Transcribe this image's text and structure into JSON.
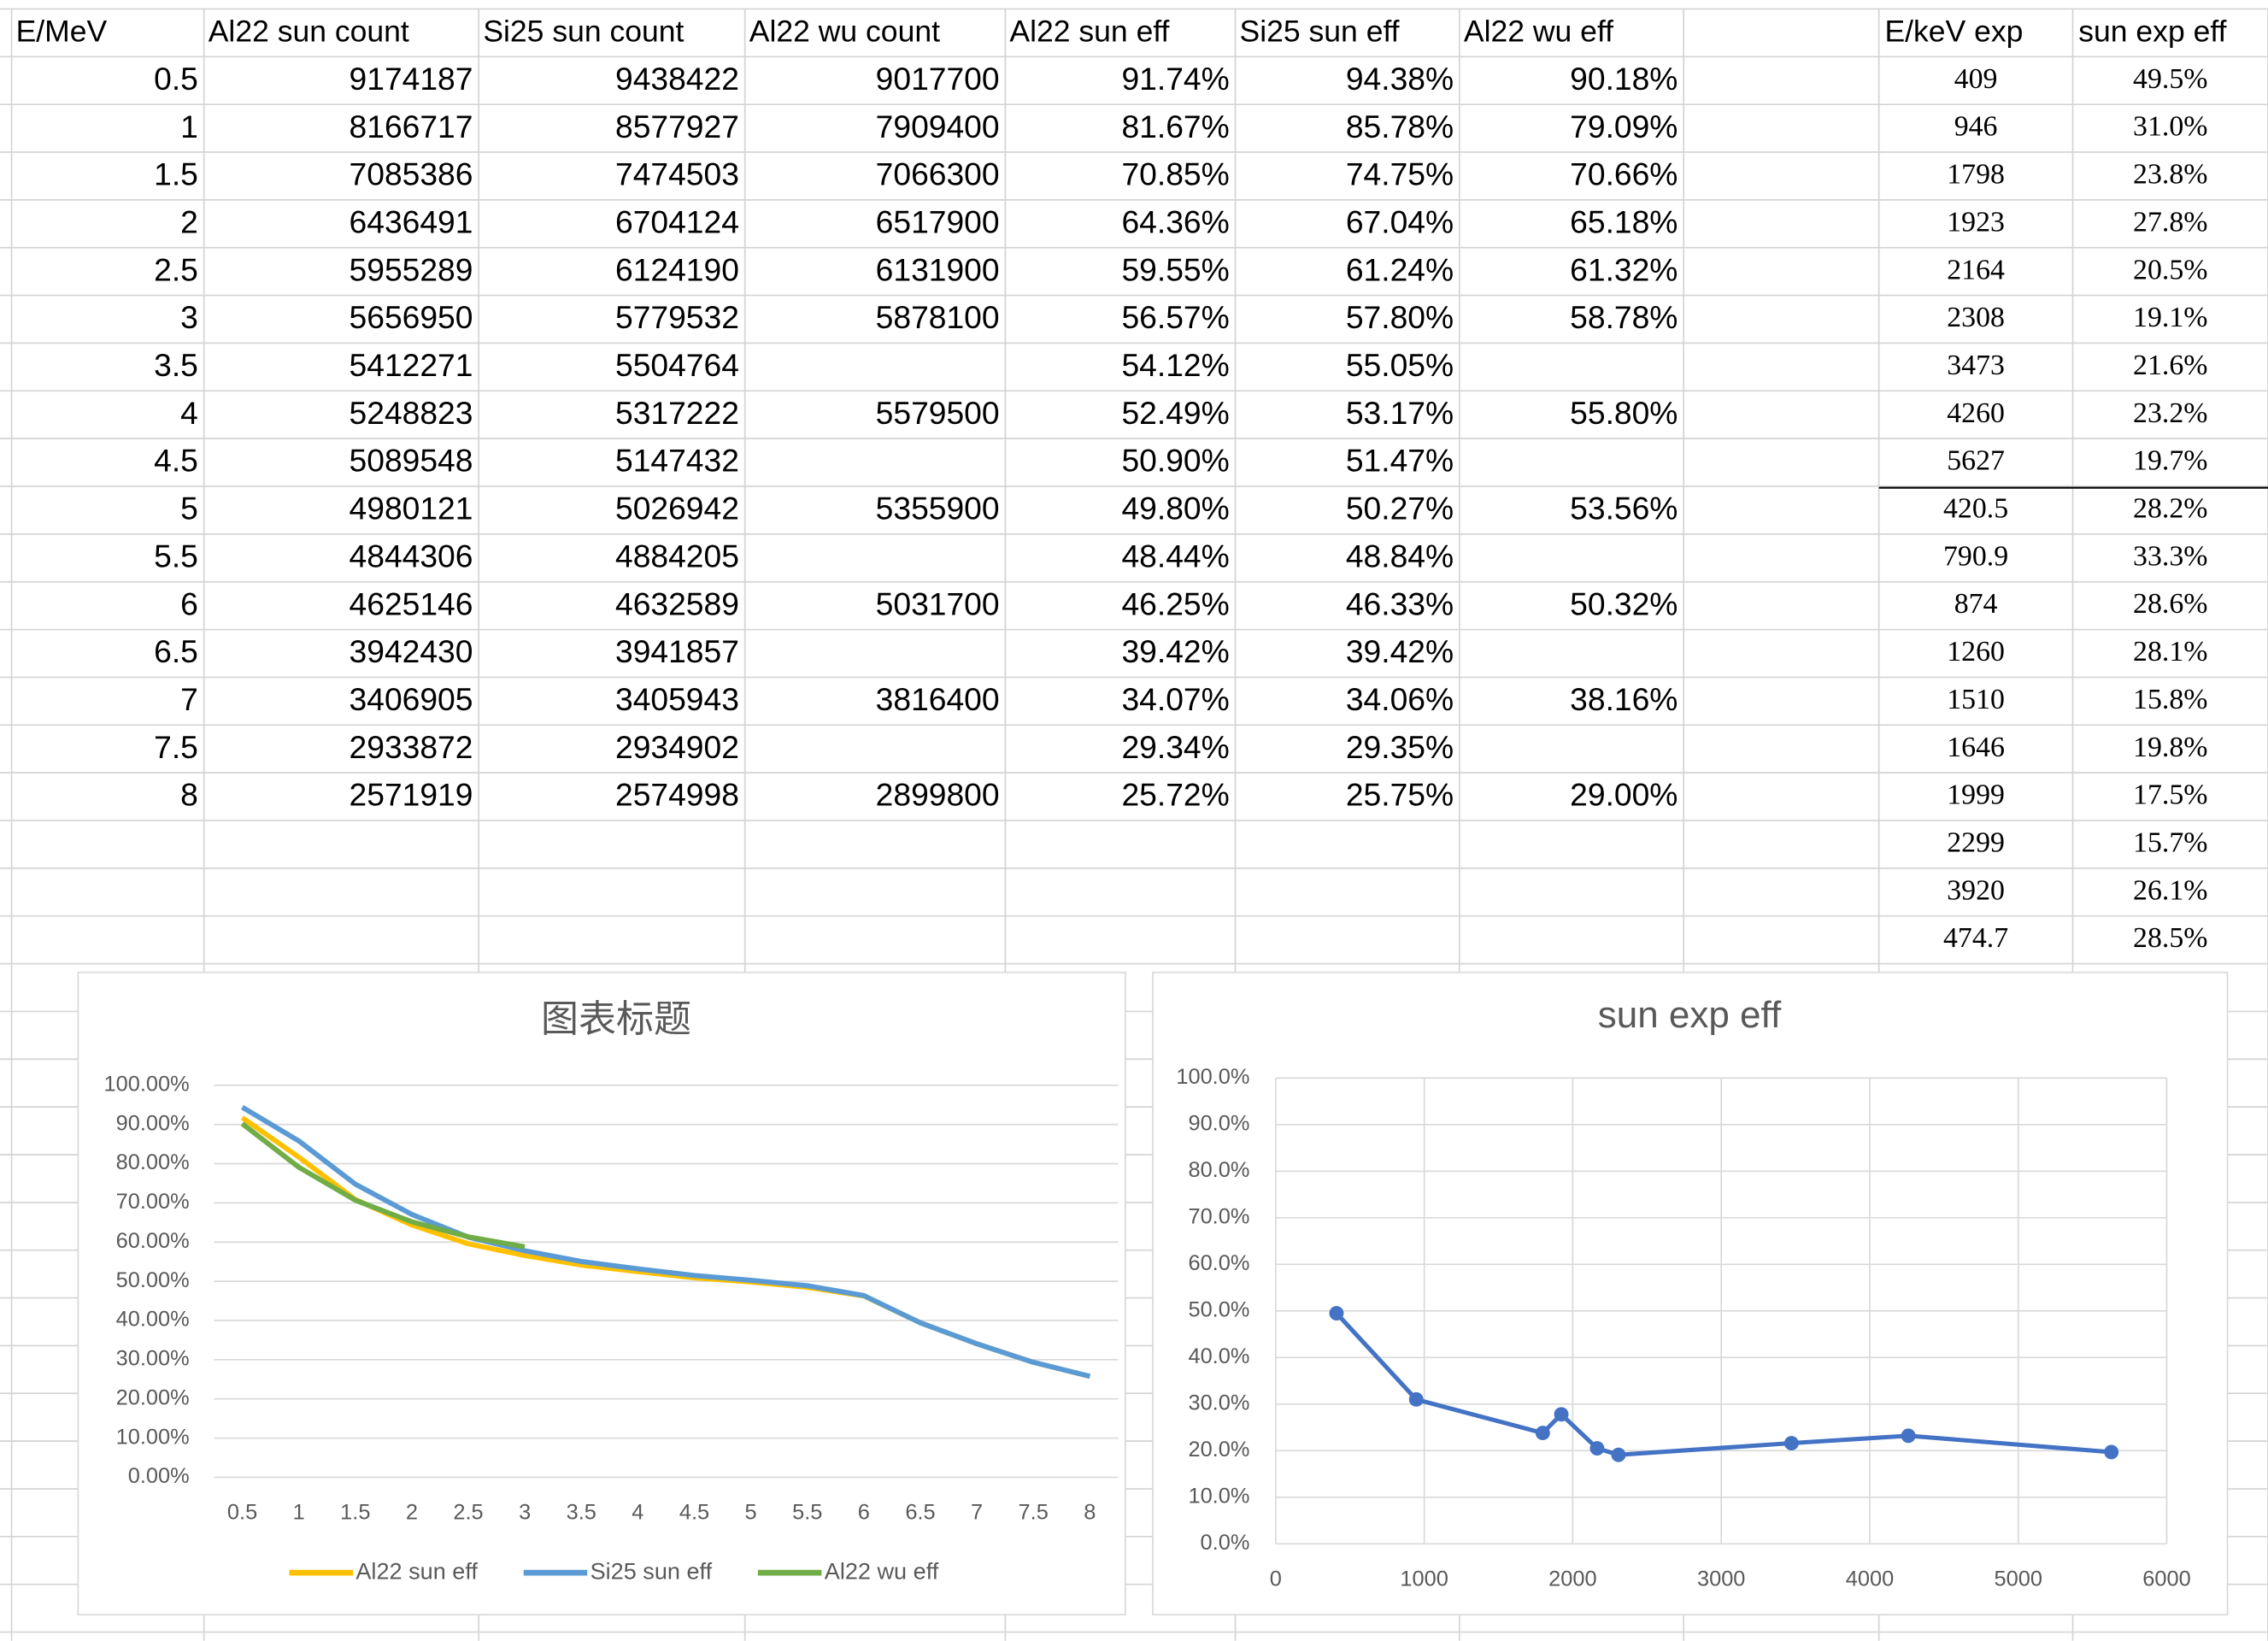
{
  "table": {
    "header": [
      "E/MeV",
      "Al22 sun count",
      "Si25 sun count",
      "Al22 wu count",
      "Al22 sun eff",
      "Si25 sun eff",
      "Al22 wu eff"
    ],
    "rows": [
      [
        "0.5",
        "9174187",
        "9438422",
        "9017700",
        "91.74%",
        "94.38%",
        "90.18%"
      ],
      [
        "1",
        "8166717",
        "8577927",
        "7909400",
        "81.67%",
        "85.78%",
        "79.09%"
      ],
      [
        "1.5",
        "7085386",
        "7474503",
        "7066300",
        "70.85%",
        "74.75%",
        "70.66%"
      ],
      [
        "2",
        "6436491",
        "6704124",
        "6517900",
        "64.36%",
        "67.04%",
        "65.18%"
      ],
      [
        "2.5",
        "5955289",
        "6124190",
        "6131900",
        "59.55%",
        "61.24%",
        "61.32%"
      ],
      [
        "3",
        "5656950",
        "5779532",
        "5878100",
        "56.57%",
        "57.80%",
        "58.78%"
      ],
      [
        "3.5",
        "5412271",
        "5504764",
        null,
        "54.12%",
        "55.05%",
        null
      ],
      [
        "4",
        "5248823",
        "5317222",
        "5579500",
        "52.49%",
        "53.17%",
        "55.80%"
      ],
      [
        "4.5",
        "5089548",
        "5147432",
        null,
        "50.90%",
        "51.47%",
        null
      ],
      [
        "5",
        "4980121",
        "5026942",
        "5355900",
        "49.80%",
        "50.27%",
        "53.56%"
      ],
      [
        "5.5",
        "4844306",
        "4884205",
        null,
        "48.44%",
        "48.84%",
        null
      ],
      [
        "6",
        "4625146",
        "4632589",
        "5031700",
        "46.25%",
        "46.33%",
        "50.32%"
      ],
      [
        "6.5",
        "3942430",
        "3941857",
        null,
        "39.42%",
        "39.42%",
        null
      ],
      [
        "7",
        "3406905",
        "3405943",
        "3816400",
        "34.07%",
        "34.06%",
        "38.16%"
      ],
      [
        "7.5",
        "2933872",
        "2934902",
        null,
        "29.34%",
        "29.35%",
        null
      ],
      [
        "8",
        "2571919",
        "2574998",
        "2899800",
        "25.72%",
        "25.75%",
        "29.00%"
      ]
    ]
  },
  "side_table": {
    "header": [
      "E/keV exp",
      "sun exp eff"
    ],
    "rows": [
      [
        "409",
        "49.5%"
      ],
      [
        "946",
        "31.0%"
      ],
      [
        "1798",
        "23.8%"
      ],
      [
        "1923",
        "27.8%"
      ],
      [
        "2164",
        "20.5%"
      ],
      [
        "2308",
        "19.1%"
      ],
      [
        "3473",
        "21.6%"
      ],
      [
        "4260",
        "23.2%"
      ],
      [
        "5627",
        "19.7%"
      ],
      [
        "420.5",
        "28.2%"
      ],
      [
        "790.9",
        "33.3%"
      ],
      [
        "874",
        "28.6%"
      ],
      [
        "1260",
        "28.1%"
      ],
      [
        "1510",
        "15.8%"
      ],
      [
        "1646",
        "19.8%"
      ],
      [
        "1999",
        "17.5%"
      ],
      [
        "2299",
        "15.7%"
      ],
      [
        "3920",
        "26.1%"
      ],
      [
        "474.7",
        "28.5%"
      ]
    ]
  },
  "chart_data": [
    {
      "type": "line",
      "title": "图表标题",
      "categories": [
        "0.5",
        "1",
        "1.5",
        "2",
        "2.5",
        "3",
        "3.5",
        "4",
        "4.5",
        "5",
        "5.5",
        "6",
        "6.5",
        "7",
        "7.5",
        "8"
      ],
      "series": [
        {
          "name": "Al22 sun eff",
          "color": "#ffc000",
          "values": [
            91.74,
            81.67,
            70.85,
            64.36,
            59.55,
            56.57,
            54.12,
            52.49,
            50.9,
            49.8,
            48.44,
            46.25,
            39.42,
            34.07,
            29.34,
            25.72
          ]
        },
        {
          "name": "Si25 sun eff",
          "color": "#5b9bd5",
          "values": [
            94.38,
            85.78,
            74.75,
            67.04,
            61.24,
            57.8,
            55.05,
            53.17,
            51.47,
            50.27,
            48.84,
            46.33,
            39.42,
            34.06,
            29.35,
            25.75
          ]
        },
        {
          "name": "Al22 wu eff",
          "color": "#70ad47",
          "values": [
            90.18,
            79.09,
            70.66,
            65.18,
            61.32,
            58.78,
            null,
            null,
            null,
            null,
            null,
            null,
            null,
            null,
            null,
            null
          ]
        }
      ],
      "ylim": [
        0,
        100
      ],
      "yticks": [
        {
          "value": 0,
          "label": "0.00%"
        },
        {
          "value": 10,
          "label": "10.00%"
        },
        {
          "value": 20,
          "label": "20.00%"
        },
        {
          "value": 30,
          "label": "30.00%"
        },
        {
          "value": 40,
          "label": "40.00%"
        },
        {
          "value": 50,
          "label": "50.00%"
        },
        {
          "value": 60,
          "label": "60.00%"
        },
        {
          "value": 70,
          "label": "70.00%"
        },
        {
          "value": 80,
          "label": "80.00%"
        },
        {
          "value": 90,
          "label": "90.00%"
        },
        {
          "value": 100,
          "label": "100.00%"
        }
      ],
      "grid": true,
      "legend": "bottom"
    },
    {
      "type": "scatter",
      "title": "sun exp eff",
      "color": "#4472c4",
      "x": [
        409,
        946,
        1798,
        1923,
        2164,
        2308,
        3473,
        4260,
        5627
      ],
      "values": [
        49.5,
        31.0,
        23.8,
        27.8,
        20.5,
        19.1,
        21.6,
        23.2,
        19.7
      ],
      "xlim": [
        0,
        6000
      ],
      "xticks": [
        0,
        1000,
        2000,
        3000,
        4000,
        5000,
        6000
      ],
      "ylim": [
        0,
        100
      ],
      "yticks": [
        {
          "value": 0,
          "label": "0.0%"
        },
        {
          "value": 10,
          "label": "10.0%"
        },
        {
          "value": 20,
          "label": "20.0%"
        },
        {
          "value": 30,
          "label": "30.0%"
        },
        {
          "value": 40,
          "label": "40.0%"
        },
        {
          "value": 50,
          "label": "50.0%"
        },
        {
          "value": 60,
          "label": "60.0%"
        },
        {
          "value": 70,
          "label": "70.0%"
        },
        {
          "value": 80,
          "label": "80.0%"
        },
        {
          "value": 90,
          "label": "90.0%"
        },
        {
          "value": 100,
          "label": "100.0%"
        }
      ],
      "grid": true,
      "lines": true
    }
  ]
}
